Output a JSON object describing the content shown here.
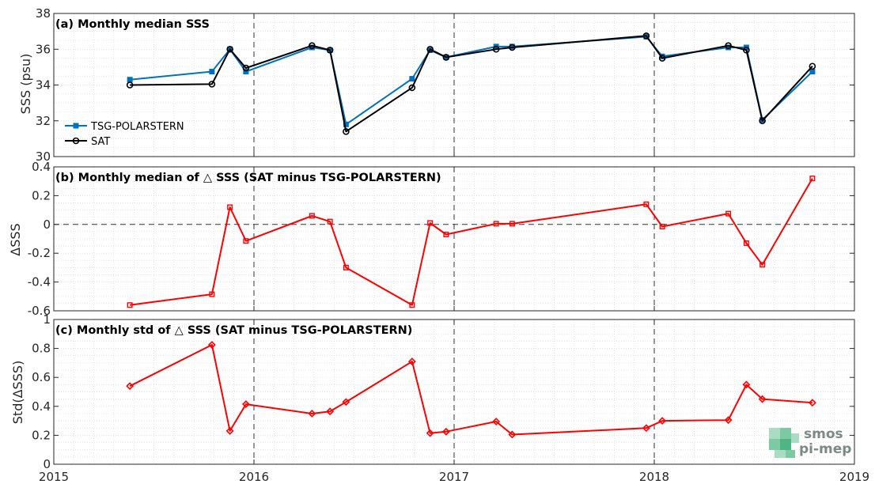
{
  "colors": {
    "tsg": "#0072BD",
    "sat": "#000000",
    "delta": "#FF0000",
    "logo": "#3fae7c"
  },
  "logo": {
    "line1": "smos",
    "line2": "pi-mep",
    "icon": "cube-grid-icon"
  },
  "chart_data": [
    {
      "type": "line",
      "title": "(a) Monthly median SSS",
      "ylabel": "SSS (psu)",
      "xlabel": "",
      "xlim": [
        2015,
        2019
      ],
      "ylim": [
        30,
        38
      ],
      "xticks": [
        2015,
        2016,
        2017,
        2018,
        2019
      ],
      "yticks": [
        30,
        32,
        34,
        36,
        38
      ],
      "grid": true,
      "legend_position": "bottom-left",
      "vlines": [
        2016,
        2017,
        2018
      ],
      "series": [
        {
          "name": "TSG-POLARSTERN",
          "marker": "square",
          "x": [
            2015.38,
            2015.79,
            2015.88,
            2015.96,
            2016.29,
            2016.38,
            2016.46,
            2016.79,
            2016.88,
            2016.96,
            2017.21,
            2017.29,
            2017.96,
            2018.04,
            2018.37,
            2018.46,
            2018.54,
            2018.79
          ],
          "y": [
            34.3,
            34.75,
            36.0,
            34.75,
            36.1,
            35.95,
            31.8,
            34.35,
            35.95,
            35.55,
            36.15,
            36.15,
            36.7,
            35.6,
            36.1,
            36.1,
            32.05,
            34.75
          ]
        },
        {
          "name": "SAT",
          "marker": "circle",
          "x": [
            2015.38,
            2015.79,
            2015.88,
            2015.96,
            2016.29,
            2016.38,
            2016.46,
            2016.79,
            2016.88,
            2016.96,
            2017.21,
            2017.29,
            2017.96,
            2018.04,
            2018.37,
            2018.46,
            2018.54,
            2018.79
          ],
          "y": [
            34.0,
            34.05,
            36.0,
            34.95,
            36.2,
            35.95,
            31.4,
            33.85,
            36.0,
            35.55,
            36.0,
            36.1,
            36.75,
            35.5,
            36.2,
            35.95,
            32.0,
            35.05
          ]
        }
      ]
    },
    {
      "type": "line",
      "title": "(b) Monthly median of △ SSS (SAT minus TSG-POLARSTERN)",
      "ylabel": "ΔSSS",
      "xlabel": "",
      "xlim": [
        2015,
        2019
      ],
      "ylim": [
        -0.6,
        0.4
      ],
      "xticks": [
        2015,
        2016,
        2017,
        2018,
        2019
      ],
      "yticks": [
        -0.6,
        -0.4,
        -0.2,
        0,
        0.2,
        0.4
      ],
      "ytick_labels": [
        "-0.6",
        "-0.4",
        "-0.2",
        "0",
        "0.2",
        "0.4"
      ],
      "grid": true,
      "hline": 0,
      "vlines": [
        2016,
        2017,
        2018
      ],
      "series": [
        {
          "marker": "square",
          "x": [
            2015.38,
            2015.79,
            2015.88,
            2015.96,
            2016.29,
            2016.38,
            2016.46,
            2016.79,
            2016.88,
            2016.96,
            2017.21,
            2017.29,
            2017.96,
            2018.04,
            2018.37,
            2018.46,
            2018.54,
            2018.79
          ],
          "y": [
            -0.56,
            -0.485,
            0.12,
            -0.115,
            0.06,
            0.02,
            -0.3,
            -0.56,
            0.01,
            -0.07,
            0.005,
            0.005,
            0.14,
            -0.015,
            0.075,
            -0.13,
            -0.28,
            0.32
          ]
        }
      ]
    },
    {
      "type": "line",
      "title": "(c) Monthly std of △ SSS (SAT minus TSG-POLARSTERN)",
      "ylabel": "Std(ΔSSS)",
      "xlabel": "",
      "xlim": [
        2015,
        2019
      ],
      "ylim": [
        0,
        1
      ],
      "xticks": [
        2015,
        2016,
        2017,
        2018,
        2019
      ],
      "yticks": [
        0,
        0.2,
        0.4,
        0.6,
        0.8,
        1
      ],
      "ytick_labels": [
        "0",
        "0.2",
        "0.4",
        "0.6",
        "0.8",
        "1"
      ],
      "grid": true,
      "vlines": [
        2016,
        2017,
        2018
      ],
      "series": [
        {
          "marker": "diamond",
          "x": [
            2015.38,
            2015.79,
            2015.88,
            2015.96,
            2016.29,
            2016.38,
            2016.46,
            2016.79,
            2016.88,
            2016.96,
            2017.21,
            2017.29,
            2017.96,
            2018.04,
            2018.37,
            2018.46,
            2018.54,
            2018.79
          ],
          "y": [
            0.54,
            0.825,
            0.23,
            0.415,
            0.35,
            0.365,
            0.43,
            0.71,
            0.215,
            0.225,
            0.295,
            0.205,
            0.25,
            0.3,
            0.305,
            0.55,
            0.45,
            0.425
          ]
        }
      ]
    }
  ]
}
